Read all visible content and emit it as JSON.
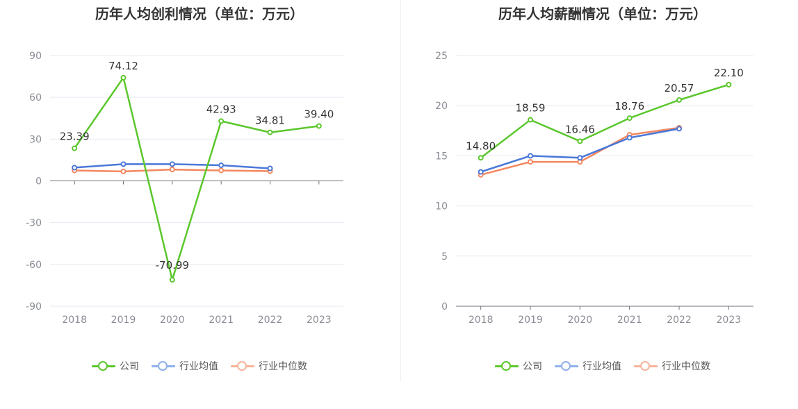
{
  "legend": {
    "company": "公司",
    "industry_avg": "行业均值",
    "industry_median": "行业中位数"
  },
  "colors": {
    "company": "#5bc72c",
    "industry_avg": "#4a78d8",
    "industry_median": "#f4875e",
    "legend_company": "#5bc72c",
    "legend_avg": "#8fb0ec",
    "legend_median": "#f6b39a"
  },
  "chart_data": [
    {
      "type": "line",
      "title": "历年人均创利情况（单位：万元）",
      "categories": [
        "2018",
        "2019",
        "2020",
        "2021",
        "2022",
        "2023"
      ],
      "ylim": [
        -90,
        90
      ],
      "yticks": [
        90,
        60,
        30,
        0,
        -30,
        -60,
        -90
      ],
      "series": [
        {
          "name": "公司",
          "values": [
            23.39,
            74.12,
            -70.99,
            42.93,
            34.81,
            39.4
          ],
          "labels": [
            "23.39",
            "74.12",
            "-70.99",
            "42.93",
            "34.81",
            "39.40"
          ]
        },
        {
          "name": "行业均值",
          "values": [
            9.5,
            12.0,
            12.0,
            11.2,
            9.0,
            null
          ]
        },
        {
          "name": "行业中位数",
          "values": [
            7.5,
            6.8,
            8.2,
            7.5,
            7.0,
            null
          ]
        }
      ]
    },
    {
      "type": "line",
      "title": "历年人均薪酬情况（单位：万元）",
      "categories": [
        "2018",
        "2019",
        "2020",
        "2021",
        "2022",
        "2023"
      ],
      "ylim": [
        0,
        25
      ],
      "yticks": [
        25,
        20,
        15,
        10,
        5,
        0
      ],
      "series": [
        {
          "name": "公司",
          "values": [
            14.8,
            18.59,
            16.46,
            18.76,
            20.57,
            22.1
          ],
          "labels": [
            "14.80",
            "18.59",
            "16.46",
            "18.76",
            "20.57",
            "22.10"
          ]
        },
        {
          "name": "行业均值",
          "values": [
            13.4,
            15.0,
            14.8,
            16.8,
            17.7,
            null
          ]
        },
        {
          "name": "行业中位数",
          "values": [
            13.1,
            14.4,
            14.4,
            17.1,
            17.8,
            null
          ]
        }
      ]
    }
  ]
}
